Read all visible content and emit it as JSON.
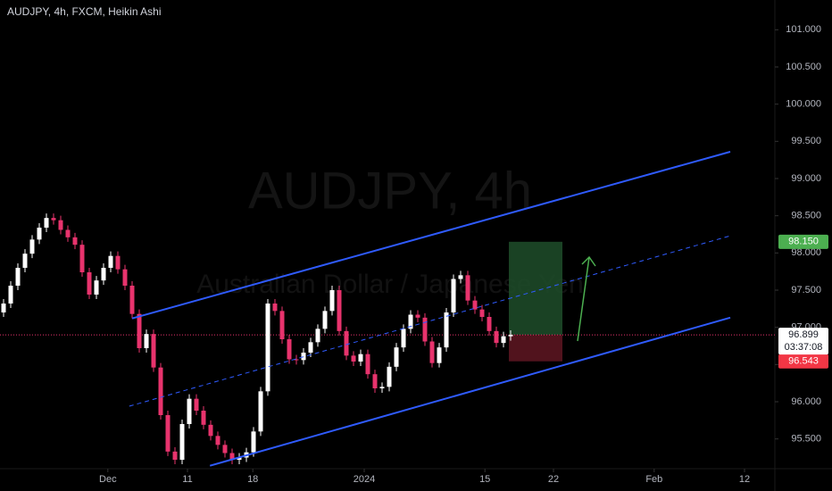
{
  "chart_data": {
    "type": "candlestick",
    "title": "AUDJPY, 4h, FXCM, Heikin Ashi",
    "watermark": "AUDJPY, 4h",
    "watermark_subtitle": "Australian Dollar / Japanese Yen",
    "up_color": "#ffffff",
    "down_color": "#e8336d",
    "line_color": "#2f5bff",
    "open": [
      97.2,
      97.32,
      97.56,
      97.8,
      97.99,
      98.18,
      98.34,
      98.47,
      98.44,
      98.31,
      98.21,
      98.11,
      97.74,
      97.44,
      97.63,
      97.8,
      97.96,
      97.78,
      97.56,
      97.18,
      96.72,
      96.91,
      96.46,
      95.82,
      95.33,
      95.22,
      95.7,
      96.04,
      95.88,
      95.69,
      95.54,
      95.42,
      95.31,
      95.22,
      95.25,
      95.32,
      95.6,
      96.14,
      97.32,
      97.22,
      96.84,
      96.57,
      96.56,
      96.66,
      96.8,
      96.98,
      97.22,
      97.5,
      96.95,
      96.62,
      96.54,
      96.64,
      96.37,
      96.18,
      96.2,
      96.47,
      96.73,
      96.98,
      97.17,
      97.13,
      96.81,
      96.52,
      96.73,
      97.2,
      97.65,
      97.7,
      97.36,
      97.24,
      97.14,
      96.95,
      96.79,
      96.88
    ],
    "high": [
      97.38,
      97.62,
      97.86,
      98.05,
      98.24,
      98.4,
      98.53,
      98.53,
      98.5,
      98.37,
      98.27,
      98.17,
      97.8,
      97.69,
      97.86,
      98.02,
      98.02,
      97.84,
      97.62,
      97.24,
      96.97,
      96.97,
      96.52,
      95.88,
      95.39,
      95.76,
      96.1,
      96.1,
      95.94,
      95.75,
      95.6,
      95.48,
      95.37,
      95.31,
      95.38,
      95.66,
      96.2,
      97.38,
      97.38,
      97.28,
      96.9,
      96.63,
      96.72,
      96.86,
      97.04,
      97.28,
      97.56,
      97.56,
      97.01,
      96.68,
      96.7,
      96.7,
      96.43,
      96.26,
      96.53,
      96.79,
      97.04,
      97.23,
      97.23,
      97.19,
      96.87,
      96.79,
      97.26,
      97.71,
      97.76,
      97.76,
      97.42,
      97.3,
      97.2,
      97.01,
      96.94,
      96.96
    ],
    "low": [
      97.14,
      97.26,
      97.5,
      97.74,
      97.93,
      98.12,
      98.28,
      98.38,
      98.25,
      98.15,
      98.05,
      97.68,
      97.38,
      97.38,
      97.57,
      97.74,
      97.72,
      97.5,
      97.12,
      96.66,
      96.66,
      96.4,
      95.76,
      95.27,
      95.16,
      95.16,
      95.64,
      95.82,
      95.63,
      95.48,
      95.36,
      95.25,
      95.16,
      95.16,
      95.19,
      95.26,
      95.54,
      96.08,
      97.16,
      96.78,
      96.51,
      96.5,
      96.5,
      96.6,
      96.74,
      96.92,
      97.16,
      96.89,
      96.56,
      96.48,
      96.48,
      96.31,
      96.12,
      96.12,
      96.14,
      96.41,
      96.67,
      96.92,
      97.07,
      96.75,
      96.46,
      96.46,
      96.67,
      97.14,
      97.59,
      97.3,
      97.18,
      97.08,
      96.89,
      96.73,
      96.73,
      96.82
    ],
    "close": [
      97.32,
      97.56,
      97.8,
      97.99,
      98.18,
      98.34,
      98.47,
      98.44,
      98.31,
      98.21,
      98.11,
      97.74,
      97.44,
      97.63,
      97.8,
      97.96,
      97.78,
      97.56,
      97.18,
      96.72,
      96.91,
      96.46,
      95.82,
      95.33,
      95.22,
      95.7,
      96.04,
      95.88,
      95.69,
      95.54,
      95.42,
      95.31,
      95.22,
      95.25,
      95.32,
      95.6,
      96.14,
      97.32,
      97.22,
      96.84,
      96.57,
      96.56,
      96.66,
      96.8,
      96.98,
      97.22,
      97.5,
      96.95,
      96.62,
      96.54,
      96.64,
      96.37,
      96.18,
      96.2,
      96.47,
      96.73,
      96.98,
      97.17,
      97.13,
      96.81,
      96.52,
      96.73,
      97.2,
      97.65,
      97.7,
      97.36,
      97.24,
      97.14,
      96.95,
      96.79,
      96.88,
      96.899
    ],
    "xlim": [
      -0.5,
      108
    ],
    "xticks": [
      {
        "value": 14.6,
        "label": "Dec"
      },
      {
        "value": 25.75,
        "label": "11"
      },
      {
        "value": 34.9,
        "label": "18"
      },
      {
        "value": 50.5,
        "label": "2024"
      },
      {
        "value": 67.4,
        "label": "15"
      },
      {
        "value": 77,
        "label": "22"
      },
      {
        "value": 91.1,
        "label": "Feb"
      },
      {
        "value": 103.75,
        "label": "12"
      }
    ],
    "ylim": [
      95.1,
      101.4
    ],
    "yticks": [
      {
        "value": 95.5,
        "label": "95.500"
      },
      {
        "value": 96,
        "label": "96.000"
      },
      {
        "value": 96.5,
        "label": "96.500"
      },
      {
        "value": 97,
        "label": "97.000"
      },
      {
        "value": 97.5,
        "label": "97.500"
      },
      {
        "value": 98,
        "label": "98.000"
      },
      {
        "value": 98.5,
        "label": "98.500"
      },
      {
        "value": 99,
        "label": "99.000"
      },
      {
        "value": 99.5,
        "label": "99.500"
      },
      {
        "value": 100,
        "label": "100.000"
      },
      {
        "value": 100.5,
        "label": "100.500"
      },
      {
        "value": 101,
        "label": "101.000"
      }
    ],
    "trendlines": [
      {
        "style": "solid",
        "x": [
          18,
          101.75
        ],
        "y": [
          97.12,
          99.36
        ]
      },
      {
        "style": "dashed",
        "x": [
          17.6,
          101.75
        ],
        "y": [
          95.94,
          98.23
        ]
      },
      {
        "style": "solid",
        "x": [
          28.9,
          101.75
        ],
        "y": [
          95.14,
          97.13
        ]
      }
    ],
    "position": {
      "x": [
        70.75,
        78.25
      ],
      "entry": 96.899,
      "target": {
        "value": 98.15,
        "label": "98.150"
      },
      "stop": 96.543
    },
    "last_price": 96.899,
    "countdown": "03:37:08"
  }
}
